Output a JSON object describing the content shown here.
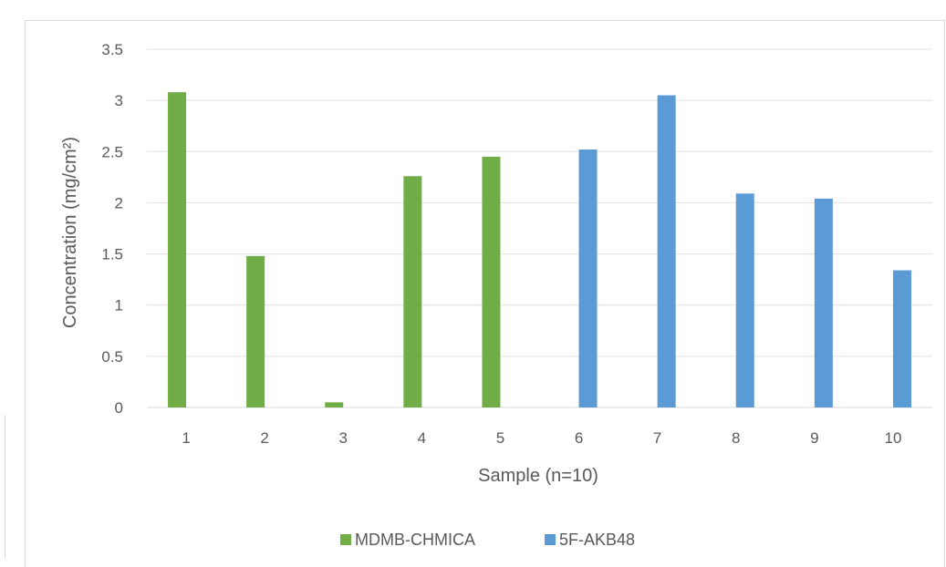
{
  "chart_data": {
    "type": "bar",
    "title": "",
    "xlabel": "Sample (n=10)",
    "ylabel": "Concentration (mg/cm²)",
    "ylim": [
      0,
      3.5
    ],
    "yticks": [
      "0",
      "0.5",
      "1",
      "1.5",
      "2",
      "2.5",
      "3",
      "3.5"
    ],
    "categories": [
      "1",
      "2",
      "3",
      "4",
      "5",
      "6",
      "7",
      "8",
      "9",
      "10"
    ],
    "series": [
      {
        "name": "MDMB-CHMICA",
        "color": "#70ad47",
        "values": [
          3.08,
          1.48,
          0.05,
          2.26,
          2.45,
          null,
          null,
          null,
          null,
          null
        ]
      },
      {
        "name": "5F-AKB48",
        "color": "#5b9bd5",
        "values": [
          null,
          null,
          null,
          null,
          null,
          2.52,
          3.05,
          2.09,
          2.04,
          1.34
        ]
      }
    ],
    "grid": true,
    "legend": "bottom"
  }
}
